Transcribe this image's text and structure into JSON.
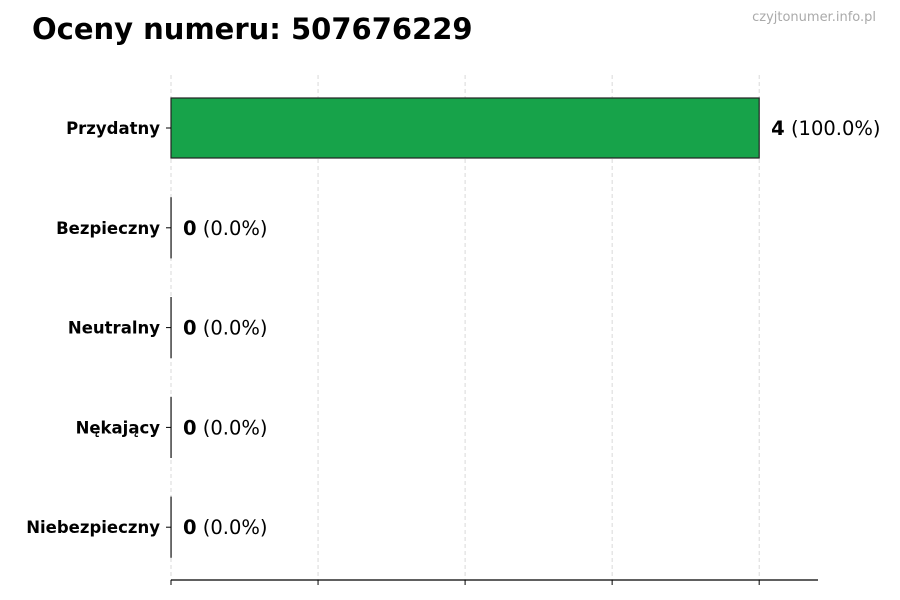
{
  "chart_data": {
    "type": "bar",
    "orientation": "horizontal",
    "title": "Oceny numeru: 507676229",
    "watermark": "czyjtonumer.info.pl",
    "categories": [
      "Przydatny",
      "Bezpieczny",
      "Neutralny",
      "Nękający",
      "Niebezpieczny"
    ],
    "values": [
      4,
      0,
      0,
      0,
      0
    ],
    "percent_labels": [
      "(100.0%)",
      "(0.0%)",
      "(0.0%)",
      "(0.0%)",
      "(0.0%)"
    ],
    "colors": [
      "#17a34a",
      "#17a34a",
      "#17a34a",
      "#17a34a",
      "#17a34a"
    ],
    "xlim": [
      0,
      4.4
    ],
    "xticks": [
      0,
      1,
      2,
      3,
      4
    ],
    "xtick_labels_visible": false,
    "grid": "x, dashed",
    "xlabel": "",
    "ylabel": ""
  }
}
